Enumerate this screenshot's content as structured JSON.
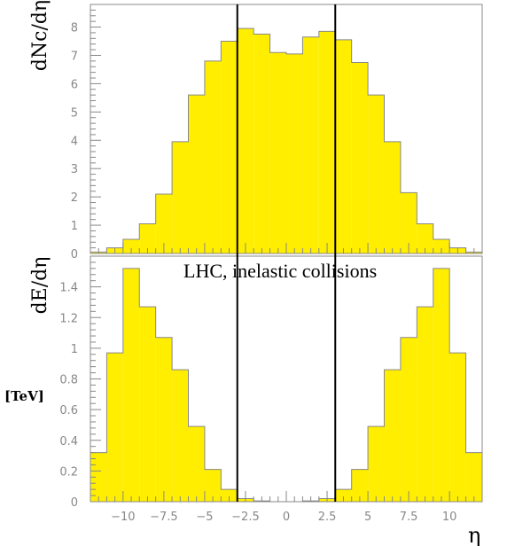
{
  "chart_data": [
    {
      "type": "bar",
      "ylabel": "dNc/dη",
      "xlim": [
        -12.0,
        12.0
      ],
      "ylim": [
        0,
        8.8
      ],
      "y_ticks": [
        0,
        1,
        2,
        3,
        4,
        5,
        6,
        7,
        8
      ],
      "bin_width": 1.0,
      "x": [
        -11.5,
        -10.5,
        -9.5,
        -8.5,
        -7.5,
        -6.5,
        -5.5,
        -4.5,
        -3.5,
        -2.5,
        -1.5,
        -0.5,
        0.5,
        1.5,
        2.5,
        3.5,
        4.5,
        5.5,
        6.5,
        7.5,
        8.5,
        9.5,
        10.5,
        11.5
      ],
      "values": [
        0.05,
        0.2,
        0.5,
        1.05,
        2.1,
        3.95,
        5.6,
        6.8,
        7.5,
        7.95,
        7.75,
        7.1,
        7.05,
        7.65,
        7.85,
        7.55,
        6.75,
        5.6,
        3.95,
        2.15,
        1.05,
        0.5,
        0.2,
        0.05
      ],
      "bar_color": "#ffee00",
      "outline_color": "#888888"
    },
    {
      "type": "bar",
      "ylabel": "dE/dη",
      "unit_label": "[TeV]",
      "xlabel": "η",
      "annotation": "LHC, inelastic collisions",
      "xlim": [
        -12.0,
        12.0
      ],
      "ylim": [
        0,
        1.6
      ],
      "y_ticks": [
        0,
        0.2,
        0.4,
        0.6,
        0.8,
        1,
        1.2,
        1.4
      ],
      "x_ticks": [
        -10,
        -7.5,
        -5,
        -2.5,
        0,
        2.5,
        5,
        7.5,
        10
      ],
      "x_tick_labels": [
        "−10",
        "−7.5",
        "−5",
        "−2.5",
        "0",
        "2.5",
        "5",
        "7.5",
        "10"
      ],
      "bin_width": 1.0,
      "x": [
        -11.5,
        -10.5,
        -9.5,
        -8.5,
        -7.5,
        -6.5,
        -5.5,
        -4.5,
        -3.5,
        -2.5,
        -1.5,
        -0.5,
        0.5,
        1.5,
        2.5,
        3.5,
        4.5,
        5.5,
        6.5,
        7.5,
        8.5,
        9.5,
        10.5,
        11.5
      ],
      "values": [
        0.32,
        0.97,
        1.52,
        1.27,
        1.07,
        0.86,
        0.49,
        0.21,
        0.08,
        0.02,
        0.005,
        0.0,
        0.0,
        0.005,
        0.02,
        0.08,
        0.21,
        0.49,
        0.86,
        1.07,
        1.27,
        1.52,
        0.97,
        0.32
      ],
      "bar_color": "#ffee00",
      "outline_color": "#888888"
    }
  ],
  "vertical_lines": [
    -3.0,
    3.0
  ],
  "vertical_line_color": "#000000",
  "axis_color": "#888888"
}
